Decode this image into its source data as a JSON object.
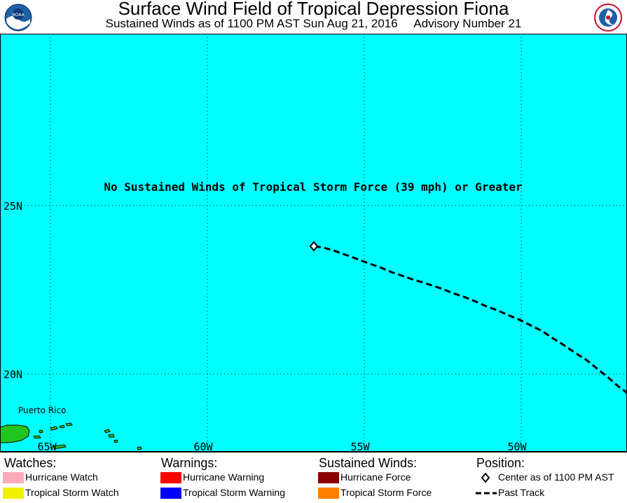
{
  "header": {
    "title": "Surface Wind Field of Tropical Depression Fiona",
    "subtitle": "Sustained Winds as of 1100 PM AST Sun Aug 21, 2016     Advisory Number 21",
    "left_logo": "noaa-logo",
    "right_logo": "national-weather-service-logo"
  },
  "map": {
    "ocean_color": "#00ffff",
    "land_color": "#22c41e",
    "message": "No Sustained Winds of Tropical Storm Force (39 mph) or Greater",
    "lat_labels": [
      "25N",
      "20N"
    ],
    "lon_labels": [
      "65W",
      "60W",
      "55W",
      "50W"
    ],
    "place_label": "Puerto Rico",
    "center_marker": "diamond-icon",
    "track_style": "dashed"
  },
  "legend": {
    "watches": {
      "heading": "Watches:",
      "items": [
        {
          "label": "Hurricane Watch",
          "color": "#ffaabb"
        },
        {
          "label": "Tropical Storm Watch",
          "color": "#f0f000"
        }
      ]
    },
    "warnings": {
      "heading": "Warnings:",
      "items": [
        {
          "label": "Hurricane Warning",
          "color": "#ff0000"
        },
        {
          "label": "Tropical Storm Warning",
          "color": "#0000ff"
        }
      ]
    },
    "winds": {
      "heading": "Sustained Winds:",
      "items": [
        {
          "label": "Hurricane Force",
          "color": "#8b0000"
        },
        {
          "label": "Tropical Storm Force",
          "color": "#ff8000"
        }
      ]
    },
    "position": {
      "heading": "Position:",
      "center_label": "Center as of 1100 PM AST",
      "track_label": "Past Track"
    }
  }
}
